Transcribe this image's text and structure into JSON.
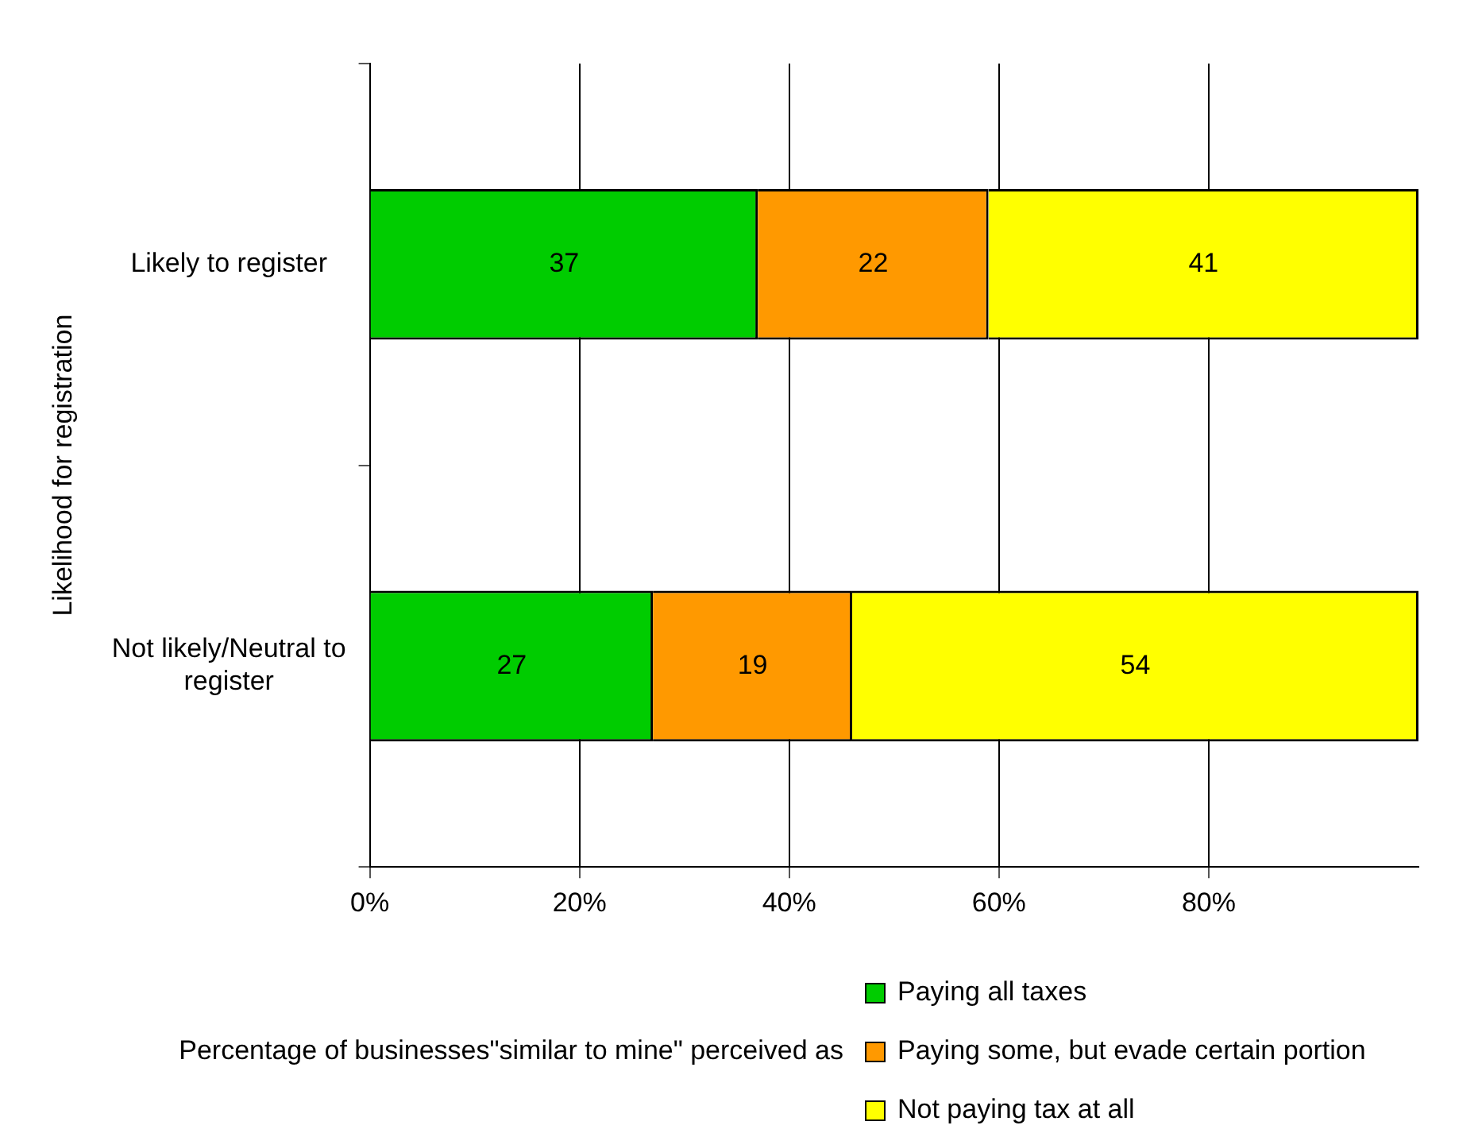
{
  "chart_data": {
    "type": "bar",
    "orientation": "horizontal",
    "stacked": true,
    "categories": [
      "Likely to register",
      "Not likely/Neutral to register"
    ],
    "series": [
      {
        "name": "Paying all taxes",
        "color": "#00cc00",
        "values": [
          37,
          27
        ]
      },
      {
        "name": "Paying some, but evade certain portion",
        "color": "#ff9900",
        "values": [
          22,
          19
        ]
      },
      {
        "name": "Not paying tax at all",
        "color": "#ffff00",
        "values": [
          41,
          54
        ]
      }
    ],
    "xlim": [
      0,
      100
    ],
    "xticks": [
      {
        "value": 0,
        "label": "0%"
      },
      {
        "value": 20,
        "label": "20%"
      },
      {
        "value": 40,
        "label": "40%"
      },
      {
        "value": 60,
        "label": "60%"
      },
      {
        "value": 80,
        "label": "80%"
      }
    ],
    "xlabel": "Percentage of businesses\"similar to mine\" perceived as",
    "ylabel": "Likelihood for registration",
    "grid": "x",
    "legend": "bottom right",
    "data_labels": true
  }
}
